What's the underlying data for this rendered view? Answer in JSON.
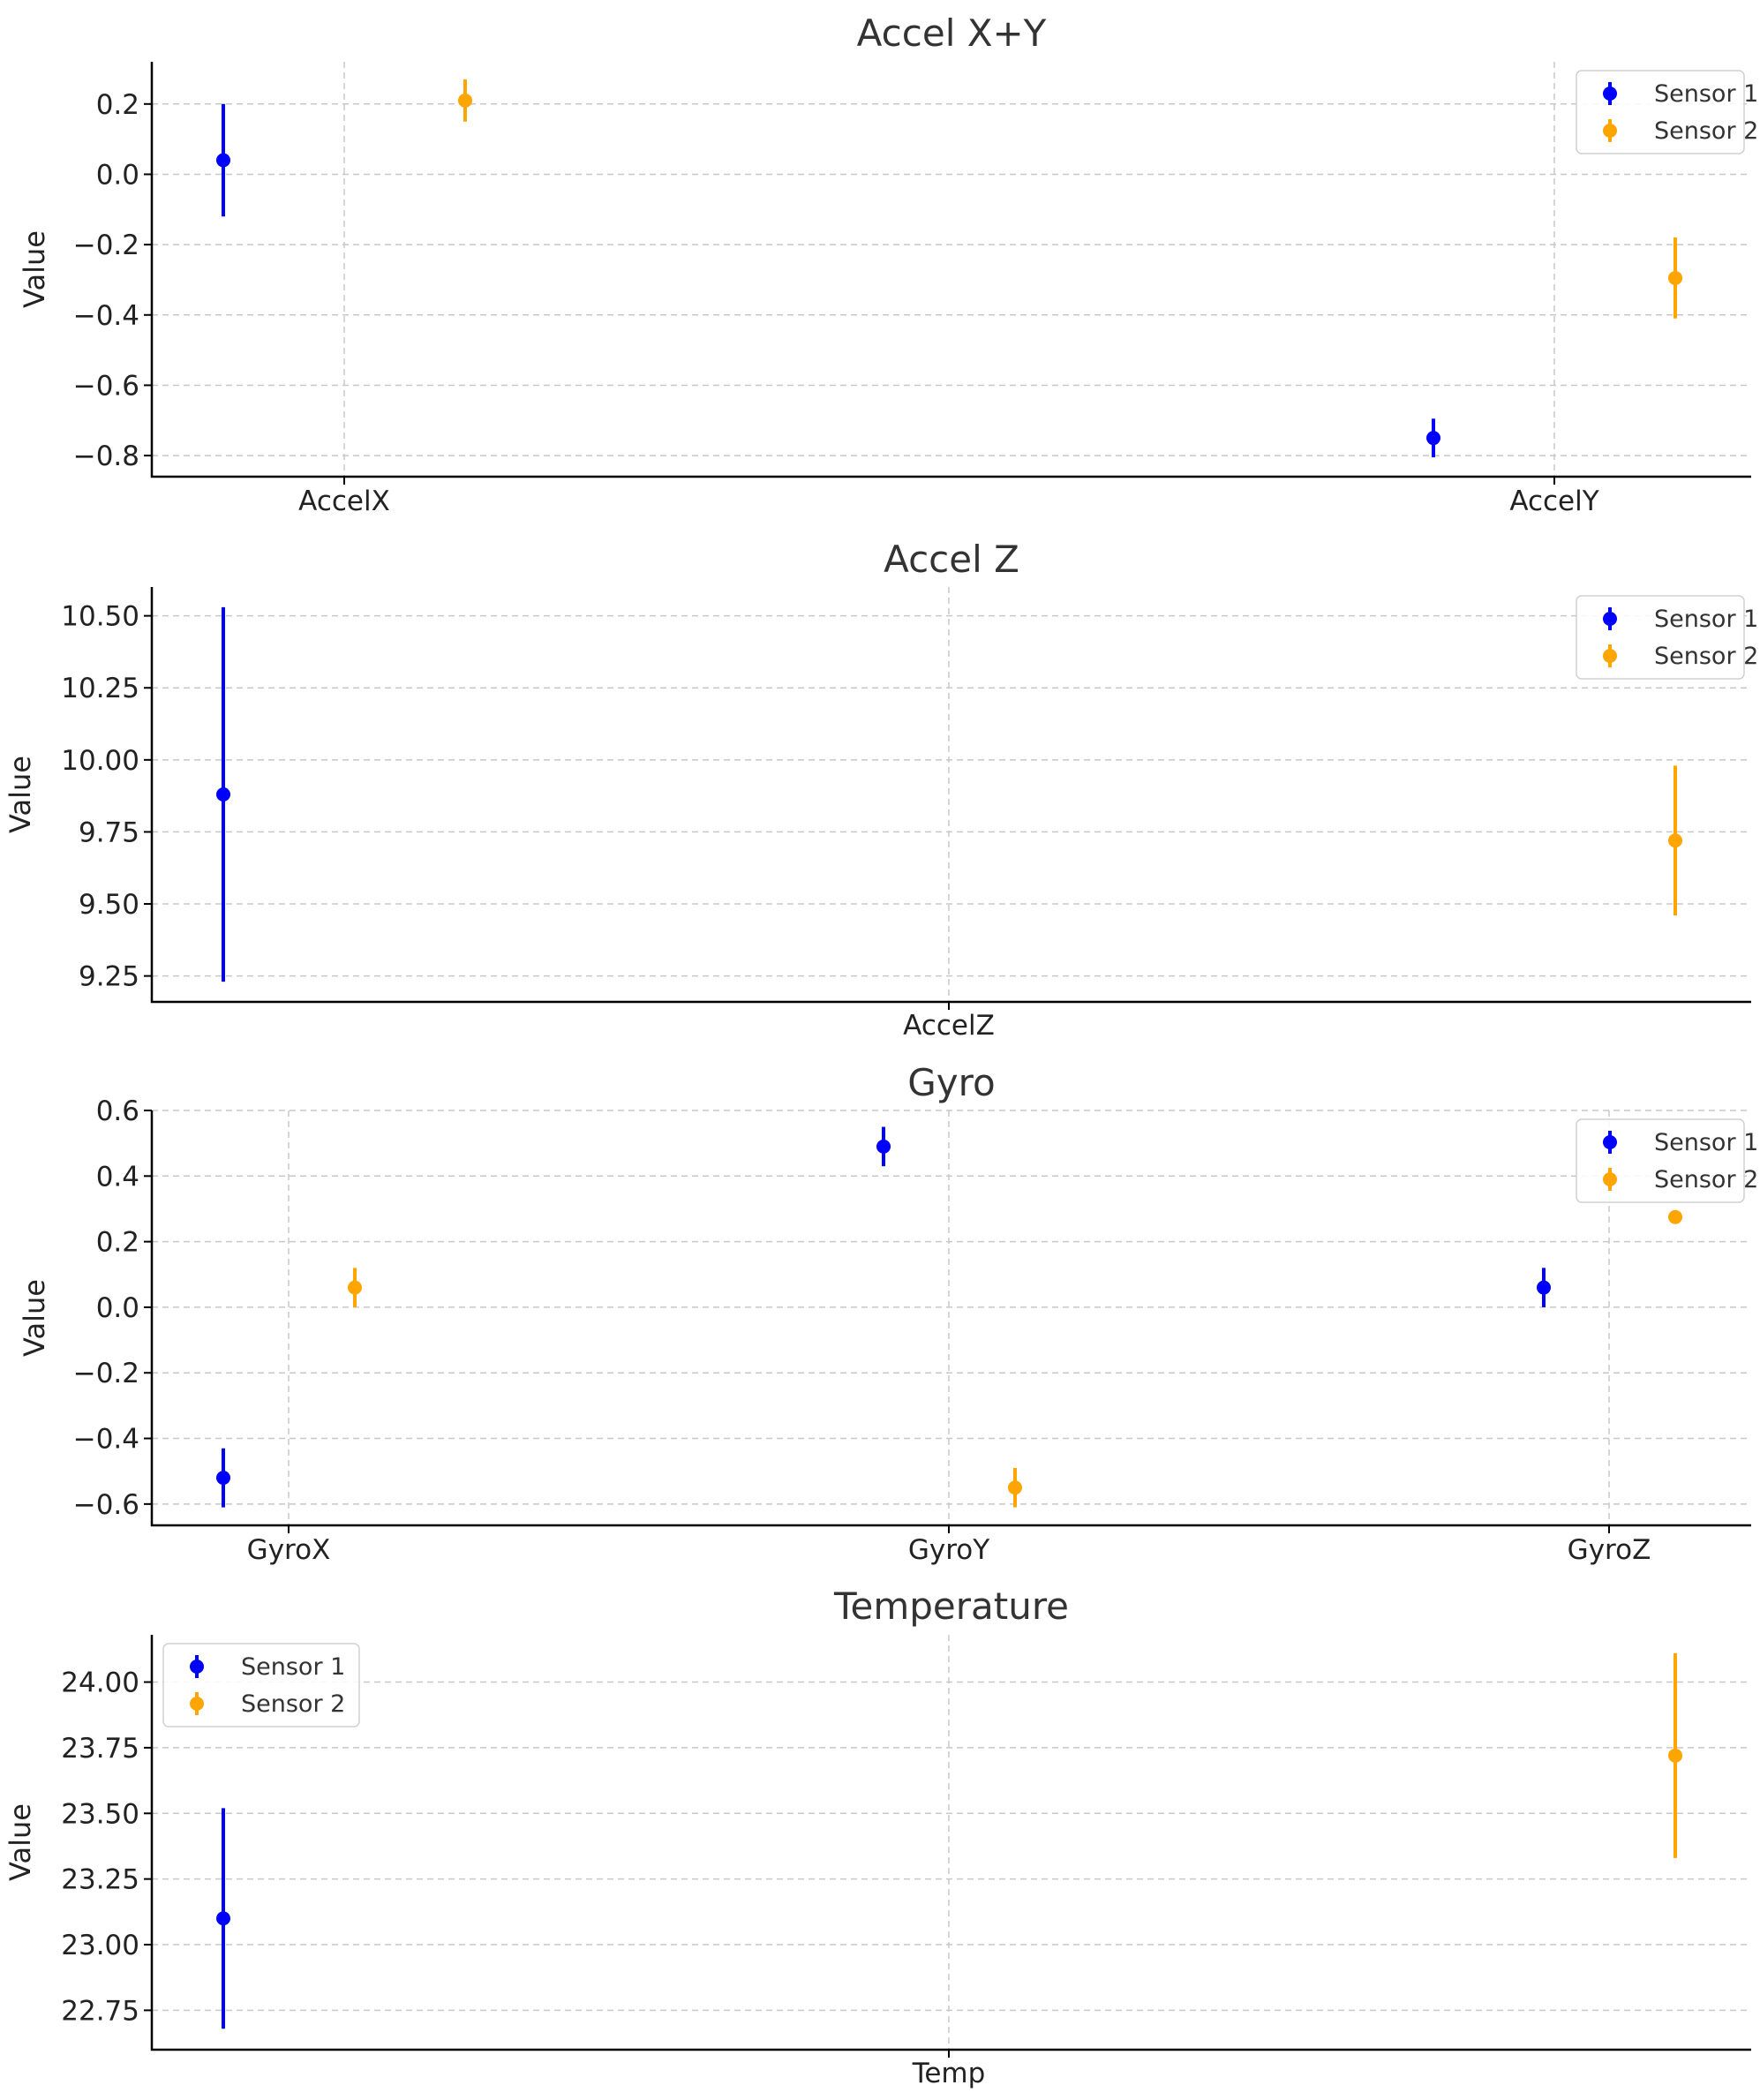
{
  "colors": {
    "sensor_1": "#0000ff",
    "sensor_2": "#ffa500"
  },
  "chart_data": [
    {
      "type": "errorbar",
      "title": "Accel X+Y",
      "xlabel": "",
      "ylabel": "Value",
      "categories": [
        "AccelX",
        "AccelY"
      ],
      "ylim": [
        -0.86,
        0.32
      ],
      "yticks": [
        0.2,
        0.0,
        -0.2,
        -0.4,
        -0.6,
        -0.8
      ],
      "ytick_labels": [
        "0.2",
        "0.0",
        "−0.2",
        "−0.4",
        "−0.6",
        "−0.8"
      ],
      "grid": true,
      "legend": "upper-right",
      "series": [
        {
          "name": "Sensor 1",
          "color": "#0000ff",
          "values": [
            0.04,
            -0.75
          ],
          "errors": [
            0.16,
            0.055
          ]
        },
        {
          "name": "Sensor 2",
          "color": "#ffa500",
          "values": [
            0.21,
            -0.295
          ],
          "errors": [
            0.06,
            0.115
          ]
        }
      ]
    },
    {
      "type": "errorbar",
      "title": "Accel Z",
      "xlabel": "",
      "ylabel": "Value",
      "categories": [
        "AccelZ"
      ],
      "ylim": [
        9.16,
        10.6
      ],
      "yticks": [
        10.5,
        10.25,
        10.0,
        9.75,
        9.5,
        9.25
      ],
      "ytick_labels": [
        "10.50",
        "10.25",
        "10.00",
        "9.75",
        "9.50",
        "9.25"
      ],
      "grid": true,
      "legend": "upper-right",
      "series": [
        {
          "name": "Sensor 1",
          "color": "#0000ff",
          "values": [
            9.88
          ],
          "errors": [
            0.65
          ]
        },
        {
          "name": "Sensor 2",
          "color": "#ffa500",
          "values": [
            9.72
          ],
          "errors": [
            0.26
          ]
        }
      ]
    },
    {
      "type": "errorbar",
      "title": "Gyro",
      "xlabel": "",
      "ylabel": "Value",
      "categories": [
        "GyroX",
        "GyroY",
        "GyroZ"
      ],
      "ylim": [
        -0.665,
        0.6
      ],
      "yticks": [
        0.6,
        0.4,
        0.2,
        0.0,
        -0.2,
        -0.4,
        -0.6
      ],
      "ytick_labels": [
        "0.6",
        "0.4",
        "0.2",
        "0.0",
        "−0.2",
        "−0.4",
        "−0.6"
      ],
      "grid": true,
      "legend": "upper-right",
      "series": [
        {
          "name": "Sensor 1",
          "color": "#0000ff",
          "values": [
            -0.52,
            0.49,
            0.06
          ],
          "errors": [
            0.09,
            0.06,
            0.06
          ]
        },
        {
          "name": "Sensor 2",
          "color": "#ffa500",
          "values": [
            0.06,
            -0.55,
            0.275
          ],
          "errors": [
            0.06,
            0.06,
            0.02
          ]
        }
      ]
    },
    {
      "type": "errorbar",
      "title": "Temperature",
      "xlabel": "",
      "ylabel": "Value",
      "categories": [
        "Temp"
      ],
      "ylim": [
        22.6,
        24.18
      ],
      "yticks": [
        24.0,
        23.75,
        23.5,
        23.25,
        23.0,
        22.75
      ],
      "ytick_labels": [
        "24.00",
        "23.75",
        "23.50",
        "23.25",
        "23.00",
        "22.75"
      ],
      "grid": true,
      "legend": "upper-left",
      "series": [
        {
          "name": "Sensor 1",
          "color": "#0000ff",
          "values": [
            23.1
          ],
          "errors": [
            0.42
          ]
        },
        {
          "name": "Sensor 2",
          "color": "#ffa500",
          "values": [
            23.72
          ],
          "errors": [
            0.39
          ]
        }
      ]
    }
  ]
}
